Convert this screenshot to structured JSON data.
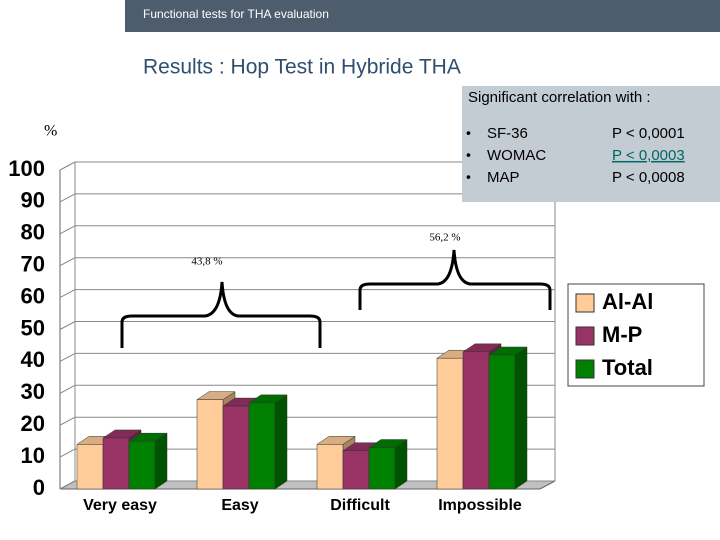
{
  "header": "Functional tests for THA evaluation",
  "correlation": {
    "title": "Significant correlation with :",
    "items": [
      {
        "name": "SF-36",
        "p": "P < 0,0001"
      },
      {
        "name": "WOMAC",
        "p": "P < 0,0003"
      },
      {
        "name": "MAP",
        "p": "P < 0,0008"
      }
    ]
  },
  "chart_data": {
    "type": "bar",
    "title": "Results :  Hop Test in Hybride THA",
    "ylabel": "%",
    "categories": [
      "Very easy",
      "Easy",
      "Difficult",
      "Impossible"
    ],
    "series": [
      {
        "name": "Al-Al",
        "color": "#ffcc99",
        "values": [
          14,
          28,
          14,
          41
        ]
      },
      {
        "name": "M-P",
        "color": "#993366",
        "values": [
          16,
          26,
          12,
          43
        ]
      },
      {
        "name": "Total",
        "color": "#008000",
        "values": [
          15,
          27,
          13,
          42
        ]
      }
    ],
    "ylim": [
      0,
      100
    ],
    "yticks": [
      0,
      10,
      20,
      30,
      40,
      50,
      60,
      70,
      80,
      90,
      100
    ],
    "grid": true,
    "annotations": [
      "43,8 %",
      "56,2 %"
    ]
  }
}
